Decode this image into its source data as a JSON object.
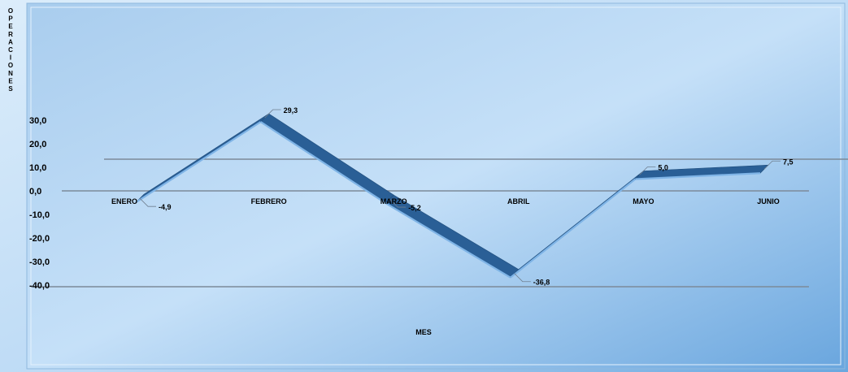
{
  "chart_data": {
    "type": "line",
    "title": "",
    "xlabel": "MES",
    "ylabel": "OPERACIONES",
    "categories": [
      "ENERO",
      "FEBRERO",
      "MARZO",
      "ABRIL",
      "MAYO",
      "JUNIO"
    ],
    "series": [
      {
        "values": [
          -4.9,
          29.3,
          -5.2,
          -36.8,
          5.0,
          7.5
        ],
        "data_labels": [
          "-4,9",
          "29,3",
          "-5,2",
          "-36,8",
          "5,0",
          "7,5"
        ],
        "color": "#2a5f96"
      }
    ],
    "y_ticks": [
      "30,0",
      "20,0",
      "10,0",
      "0,0",
      "-10,0",
      "-20,0",
      "-30,0",
      "-40,0"
    ],
    "y_tick_values": [
      30,
      20,
      10,
      0,
      -10,
      -20,
      -30,
      -40
    ],
    "ylim": [
      -40,
      30
    ],
    "legend": "none",
    "grid": false,
    "style": "3d-ribbon"
  }
}
